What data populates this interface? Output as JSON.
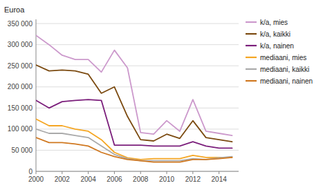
{
  "chart_data": {
    "type": "line",
    "ylabel": "Euroa",
    "x": [
      2000,
      2001,
      2002,
      2003,
      2004,
      2005,
      2006,
      2007,
      2008,
      2009,
      2010,
      2011,
      2012,
      2013,
      2014,
      2015
    ],
    "series": [
      {
        "name": "k/a, mies",
        "color": "#cc99cc",
        "values": [
          322000,
          300000,
          275000,
          265000,
          265000,
          235000,
          287000,
          245000,
          92000,
          88000,
          120000,
          95000,
          170000,
          95000,
          90000,
          85000
        ]
      },
      {
        "name": "k/a, kaikki",
        "color": "#7b4a10",
        "values": [
          252000,
          238000,
          240000,
          238000,
          230000,
          185000,
          200000,
          130000,
          75000,
          72000,
          88000,
          78000,
          120000,
          80000,
          75000,
          70000
        ]
      },
      {
        "name": "k/a, nainen",
        "color": "#7b1e7b",
        "values": [
          168000,
          150000,
          165000,
          168000,
          170000,
          168000,
          62000,
          62000,
          62000,
          60000,
          60000,
          60000,
          70000,
          60000,
          55000,
          55000
        ]
      },
      {
        "name": "mediaani, mies",
        "color": "#f5a623",
        "values": [
          124000,
          108000,
          108000,
          100000,
          95000,
          75000,
          45000,
          32000,
          28000,
          30000,
          30000,
          30000,
          38000,
          33000,
          33000,
          33000
        ]
      },
      {
        "name": "mediaani, kaikki",
        "color": "#aaaaaa",
        "values": [
          100000,
          90000,
          90000,
          85000,
          80000,
          60000,
          40000,
          30000,
          25000,
          25000,
          25000,
          25000,
          30000,
          28000,
          32000,
          35000
        ]
      },
      {
        "name": "mediaani, nainen",
        "color": "#d07820",
        "values": [
          80000,
          68000,
          68000,
          65000,
          60000,
          45000,
          35000,
          28000,
          25000,
          22000,
          22000,
          22000,
          28000,
          28000,
          30000,
          33000
        ]
      }
    ],
    "xlim": [
      2000,
      2015.5
    ],
    "xticks": [
      2000,
      2002,
      2004,
      2006,
      2008,
      2010,
      2012,
      2014
    ],
    "ylim": [
      0,
      360000
    ],
    "yticks": [
      0,
      {
        "value": 50000,
        "label": "50 000"
      },
      {
        "value": 100000,
        "label": "100 000"
      },
      {
        "value": 150000,
        "label": "150 000"
      },
      {
        "value": 200000,
        "label": "200 000"
      },
      {
        "value": 250000,
        "label": "250 000"
      },
      {
        "value": 300000,
        "label": "300 000"
      },
      {
        "value": 350000,
        "label": "350 000"
      }
    ],
    "grid": true,
    "legend": "right"
  }
}
